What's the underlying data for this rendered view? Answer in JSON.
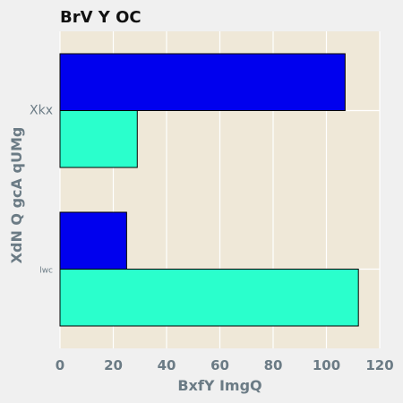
{
  "chart_data": {
    "type": "bar",
    "orientation": "horizontal",
    "title": "BrV Y OC",
    "xlabel": "BxfY ImgQ",
    "ylabel": "XdN Q gcA qUMg",
    "categories": [
      "Xkx",
      "lwc"
    ],
    "series": [
      {
        "values": [
          107,
          25
        ],
        "color": "#0000ee"
      },
      {
        "values": [
          29,
          112
        ],
        "color": "#2affcc"
      }
    ],
    "xlim": [
      0,
      120
    ],
    "xticks": [
      0,
      20,
      40,
      60,
      80,
      100,
      120
    ],
    "grid": true,
    "legend": "none",
    "plot_background": "#efe8d8",
    "figure_background": "#f0f0f0"
  }
}
